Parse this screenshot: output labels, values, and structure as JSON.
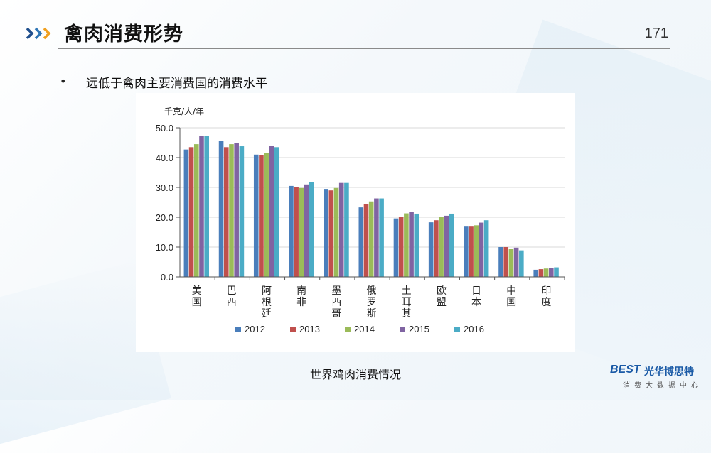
{
  "header": {
    "title": "禽肉消费形势",
    "page_number": "171",
    "arrow_color": "#f0a020"
  },
  "bullet": {
    "text": "远低于禽肉主要消费国的消费水平"
  },
  "caption": "世界鸡肉消费情况",
  "logo": {
    "badge": "BEST",
    "name": "光华博思特",
    "subtitle": "消费大数据中心"
  },
  "chart_data": {
    "type": "bar",
    "ylabel": "千克/人/年",
    "ylim": [
      0,
      50
    ],
    "yticks": [
      "0.0",
      "10.0",
      "20.0",
      "30.0",
      "40.0",
      "50.0"
    ],
    "categories": [
      "美国",
      "巴西",
      "阿根廷",
      "南非",
      "墨西哥",
      "俄罗斯",
      "土耳其",
      "欧盟",
      "日本",
      "中国",
      "印度"
    ],
    "legend_position": "bottom",
    "series": [
      {
        "name": "2012",
        "color": "#4a7ebb",
        "values": [
          42.7,
          45.5,
          41.0,
          30.5,
          29.5,
          23.3,
          19.6,
          18.3,
          17.1,
          10.0,
          2.4
        ]
      },
      {
        "name": "2013",
        "color": "#c0504d",
        "values": [
          43.5,
          43.5,
          40.8,
          30.0,
          29.0,
          24.5,
          20.0,
          19.0,
          17.1,
          10.0,
          2.6
        ]
      },
      {
        "name": "2014",
        "color": "#9bbb59",
        "values": [
          44.5,
          44.5,
          41.5,
          29.8,
          29.8,
          25.3,
          21.3,
          20.0,
          17.3,
          9.5,
          2.8
        ]
      },
      {
        "name": "2015",
        "color": "#8064a2",
        "values": [
          47.2,
          45.0,
          44.0,
          31.0,
          31.5,
          26.3,
          21.8,
          20.5,
          18.2,
          9.8,
          3.0
        ]
      },
      {
        "name": "2016",
        "color": "#4bacc6",
        "values": [
          47.2,
          43.8,
          43.5,
          31.7,
          31.5,
          26.3,
          21.2,
          21.2,
          19.0,
          8.9,
          3.2
        ]
      }
    ]
  }
}
